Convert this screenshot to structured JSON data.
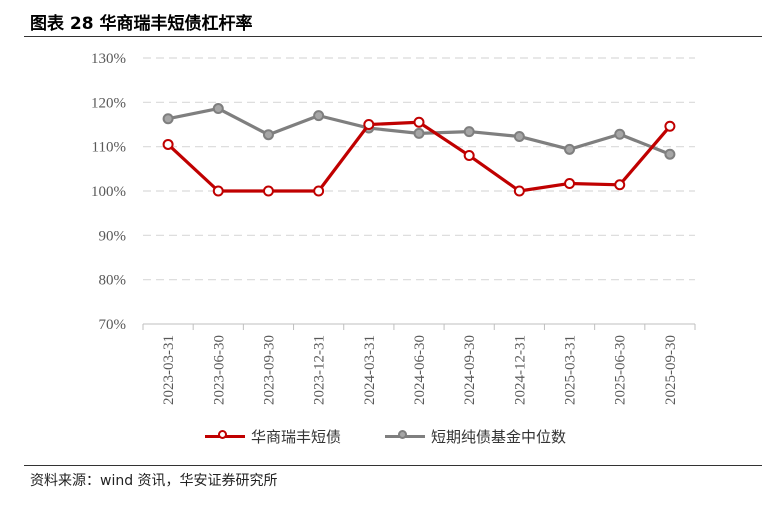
{
  "title": "图表 28 华商瑞丰短债杠杆率",
  "source": "资料来源：wind 资讯，华安证券研究所",
  "colors": {
    "series1": "#c00000",
    "series2": "#7f7f7f",
    "grid": "#d9d9d9",
    "axis": "#bfbfbf",
    "tick": "#595959"
  },
  "chart_data": {
    "type": "line",
    "title": "",
    "xlabel": "",
    "ylabel": "",
    "x": [
      "2023-03-31",
      "2023-06-30",
      "2023-09-30",
      "2023-12-31",
      "2024-03-31",
      "2024-06-30",
      "2024-09-30",
      "2024-12-31",
      "2025-03-31",
      "2025-06-30",
      "2025-09-30"
    ],
    "yticks": [
      "70%",
      "80%",
      "90%",
      "100%",
      "110%",
      "120%",
      "130%"
    ],
    "ylim": [
      70,
      130
    ],
    "grid": true,
    "legend_position": "bottom",
    "series": [
      {
        "name": "华商瑞丰短债",
        "color": "#c00000",
        "values": [
          110.5,
          100.0,
          100.0,
          100.0,
          115.0,
          115.5,
          108.0,
          100.0,
          101.7,
          101.4,
          114.6
        ]
      },
      {
        "name": "短期纯债基金中位数",
        "color": "#7f7f7f",
        "values": [
          116.3,
          118.6,
          112.7,
          117.0,
          114.2,
          113.0,
          113.4,
          112.3,
          109.4,
          112.8,
          108.3
        ]
      }
    ]
  }
}
